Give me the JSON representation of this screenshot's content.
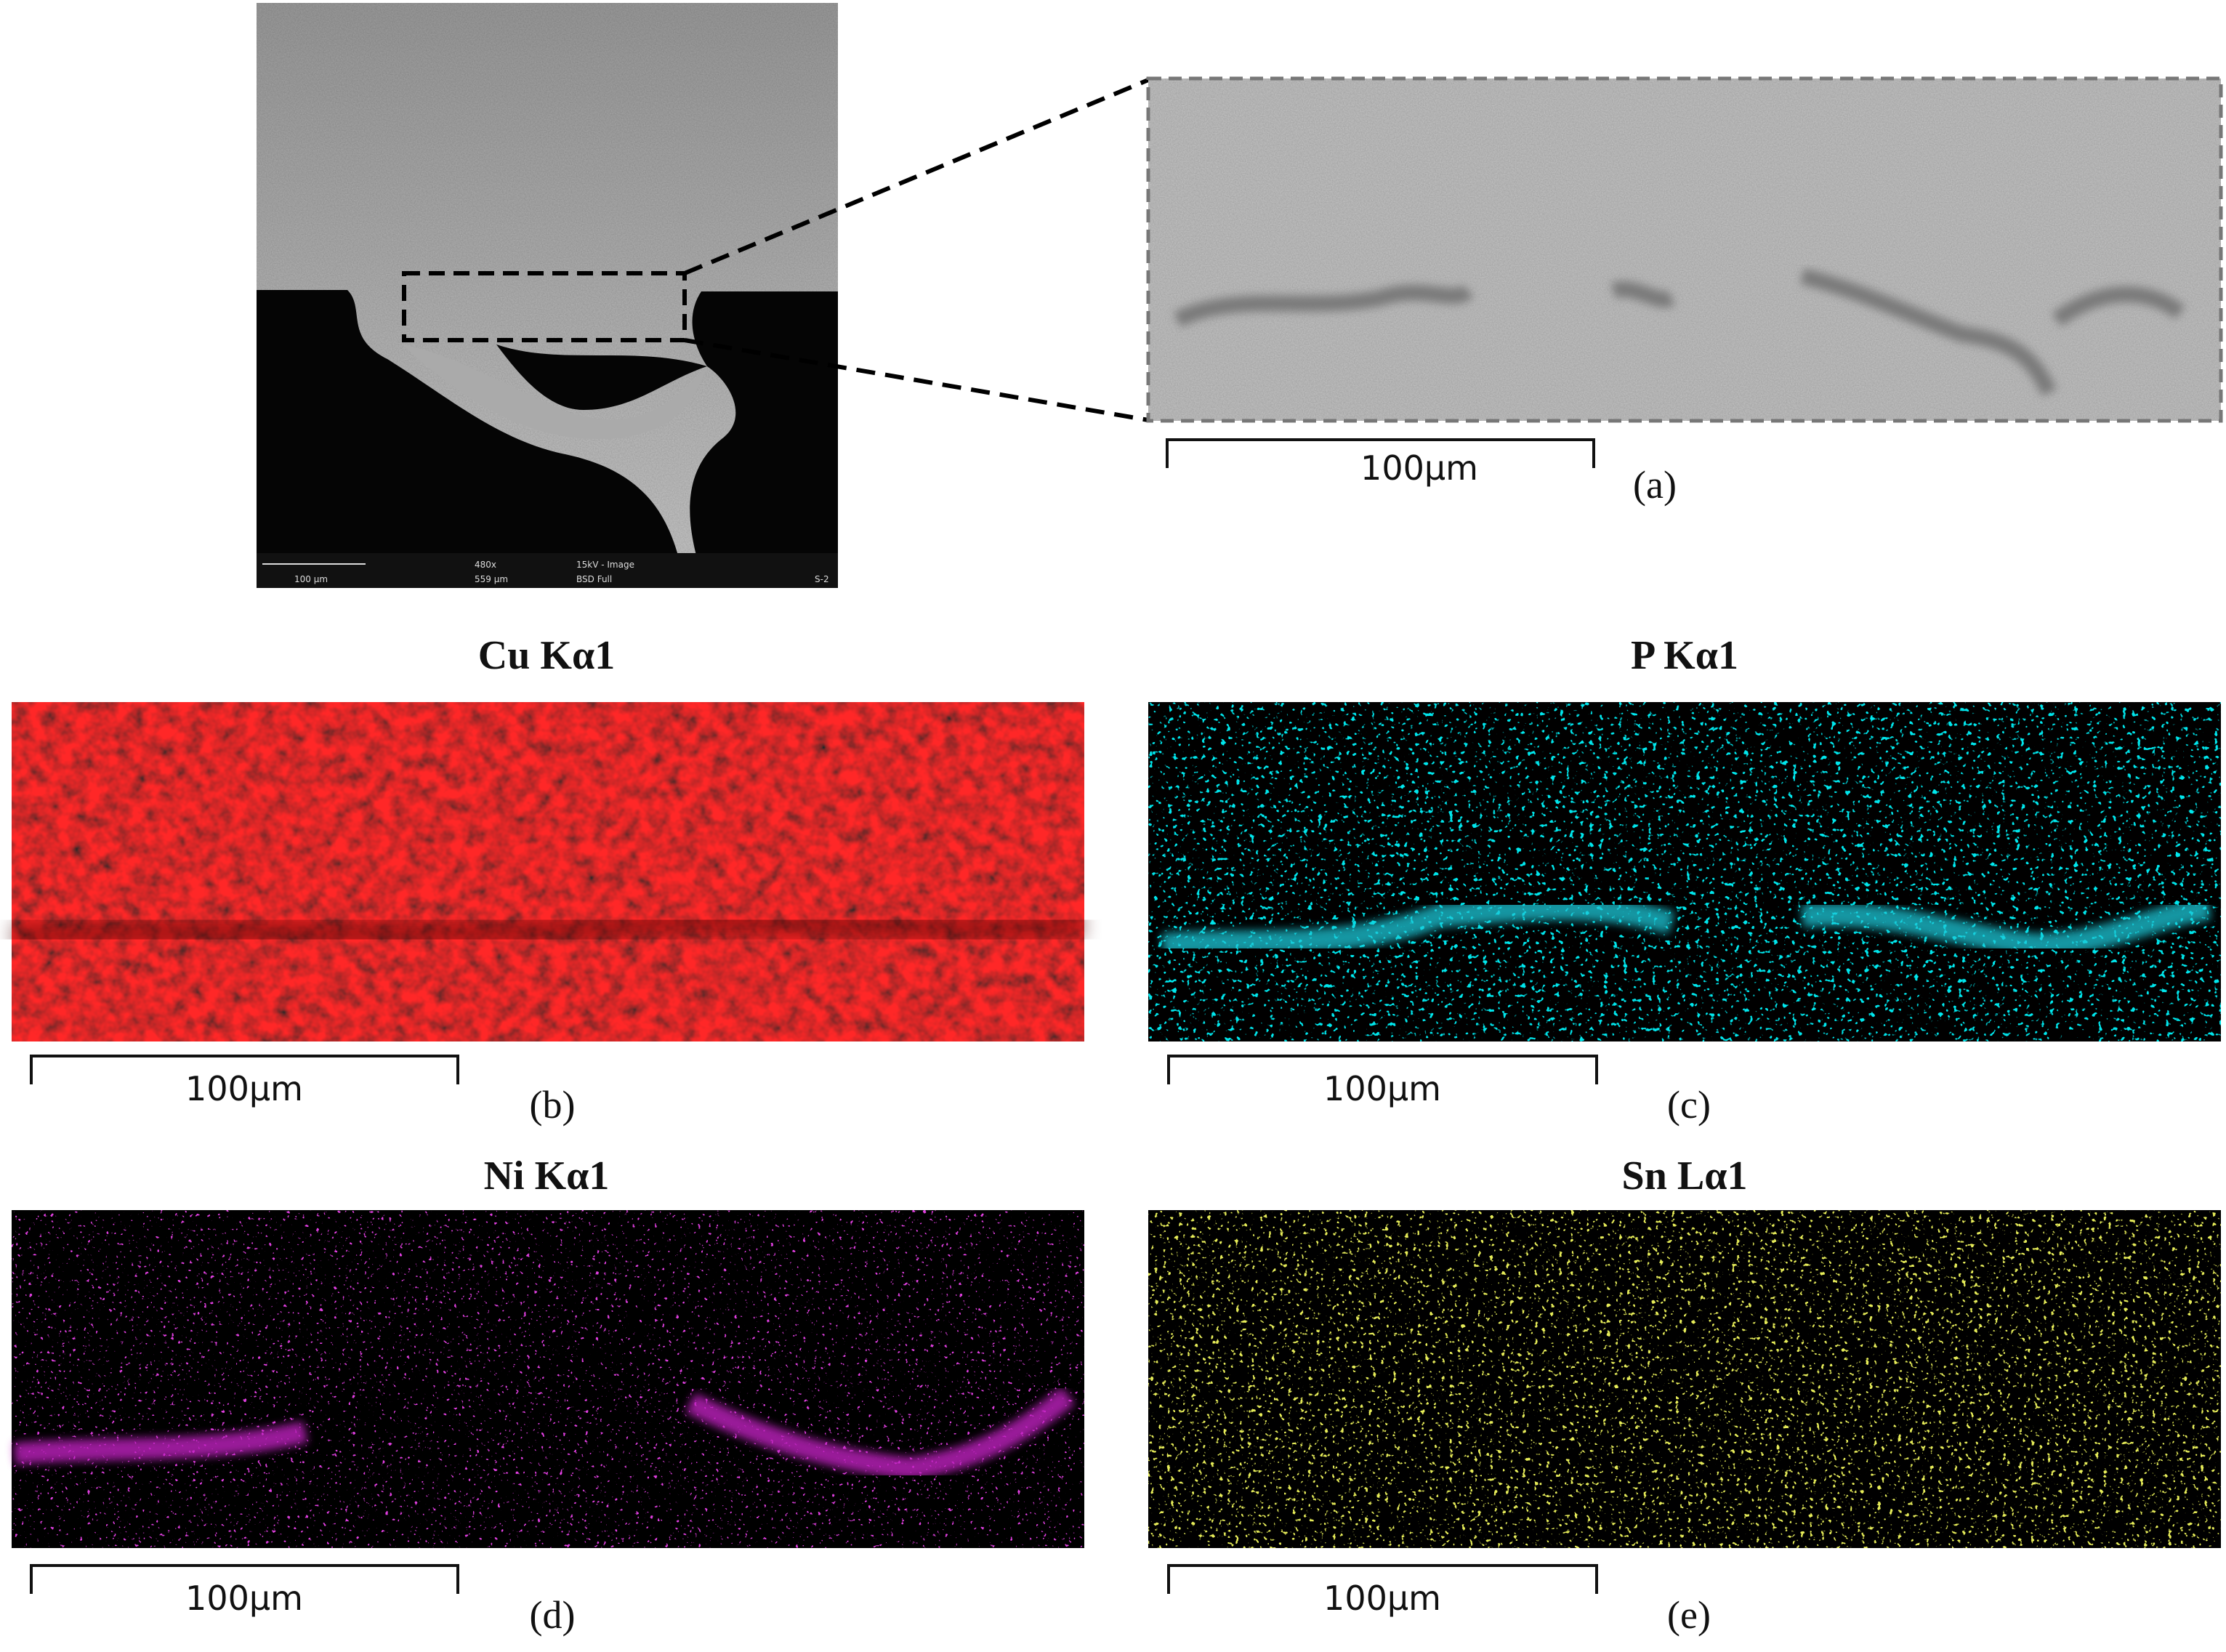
{
  "sem": {
    "footer": [
      "100 µm",
      "480x",
      "559 µm",
      "15kV - Image",
      "BSD Full",
      "S-2"
    ]
  },
  "panels": [
    {
      "label": "(a)",
      "scale_bar": "100µm"
    },
    {
      "label": "(b)",
      "title": "Cu Kα1",
      "scale_bar": "100µm"
    },
    {
      "label": "(c)",
      "title": "P Kα1",
      "scale_bar": "100µm"
    },
    {
      "label": "(d)",
      "title": "Ni Kα1",
      "scale_bar": "100µm"
    },
    {
      "label": "(e)",
      "title": "Sn Lα1",
      "scale_bar": "100µm"
    }
  ]
}
